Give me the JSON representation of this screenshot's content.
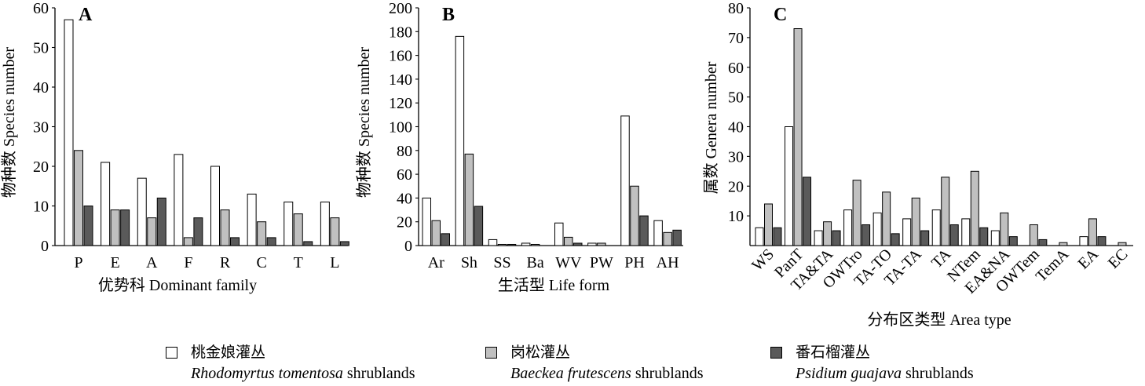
{
  "chart_data": [
    {
      "type": "bar",
      "panel_label": "A",
      "xlabel": "优势科 Dominant family",
      "ylabel": "物种数 Species number",
      "categories": [
        "P",
        "E",
        "A",
        "F",
        "R",
        "C",
        "T",
        "L"
      ],
      "ylim": [
        0,
        60
      ],
      "yticks": [
        0,
        10,
        20,
        30,
        40,
        50,
        60
      ],
      "series": [
        {
          "name": "桃金娘灌丛 Rhodomyrtus tomentosa shrublands",
          "values": [
            57,
            21,
            17,
            23,
            20,
            13,
            11,
            11
          ]
        },
        {
          "name": "岗松灌丛 Baeckea frutescens shrublands",
          "values": [
            24,
            9,
            7,
            2,
            9,
            6,
            8,
            7
          ]
        },
        {
          "name": "番石榴灌丛 Psidium guajava shrublands",
          "values": [
            10,
            9,
            12,
            7,
            2,
            2,
            1,
            1
          ]
        }
      ]
    },
    {
      "type": "bar",
      "panel_label": "B",
      "xlabel": "生活型 Life form",
      "ylabel": "物种数 Species number",
      "categories": [
        "Ar",
        "Sh",
        "SS",
        "Ba",
        "WV",
        "PW",
        "PH",
        "AH"
      ],
      "ylim": [
        0,
        200
      ],
      "yticks": [
        0,
        20,
        40,
        60,
        80,
        100,
        120,
        140,
        160,
        180,
        200
      ],
      "series": [
        {
          "name": "桃金娘灌丛 Rhodomyrtus tomentosa shrublands",
          "values": [
            40,
            176,
            5,
            2,
            19,
            2,
            109,
            21
          ]
        },
        {
          "name": "岗松灌丛 Baeckea frutescens shrublands",
          "values": [
            21,
            77,
            1,
            1,
            7,
            2,
            50,
            11
          ]
        },
        {
          "name": "番石榴灌丛 Psidium guajava shrublands",
          "values": [
            10,
            33,
            1,
            0,
            2,
            0,
            25,
            13
          ]
        }
      ]
    },
    {
      "type": "bar",
      "panel_label": "C",
      "xlabel": "分布区类型 Area type",
      "ylabel": "属数 Genera number",
      "categories": [
        "WS",
        "PanT",
        "TA&TA",
        "OWTro",
        "TA-TO",
        "TA-TA",
        "TA",
        "NTem",
        "EA&NA",
        "OWTem",
        "TemA",
        "EA",
        "EC"
      ],
      "ylim": [
        0,
        80
      ],
      "yticks": [
        10,
        20,
        30,
        40,
        50,
        60,
        70,
        80
      ],
      "series": [
        {
          "name": "桃金娘灌丛 Rhodomyrtus tomentosa shrublands",
          "values": [
            6,
            40,
            5,
            12,
            11,
            9,
            12,
            9,
            5,
            0,
            0,
            3,
            0
          ]
        },
        {
          "name": "岗松灌丛 Baeckea frutescens shrublands",
          "values": [
            14,
            73,
            8,
            22,
            18,
            16,
            23,
            25,
            11,
            7,
            1,
            9,
            1
          ]
        },
        {
          "name": "番石榴灌丛 Psidium guajava shrublands",
          "values": [
            6,
            23,
            5,
            7,
            4,
            5,
            7,
            6,
            3,
            2,
            0,
            3,
            0
          ]
        }
      ]
    }
  ],
  "legend": [
    {
      "cn": "桃金娘灌丛",
      "en_italic": "Rhodomyrtus tomentosa",
      "en_suffix": " shrublands",
      "color": "#ffffff"
    },
    {
      "cn": "岗松灌丛",
      "en_italic": "Baeckea frutescens",
      "en_suffix": " shrublands",
      "color": "#c0c0c0"
    },
    {
      "cn": "番石榴灌丛",
      "en_italic": "Psidium guajava",
      "en_suffix": " shrublands",
      "color": "#5a5a5a"
    }
  ],
  "series_colors": [
    "#ffffff",
    "#c0c0c0",
    "#5a5a5a"
  ]
}
